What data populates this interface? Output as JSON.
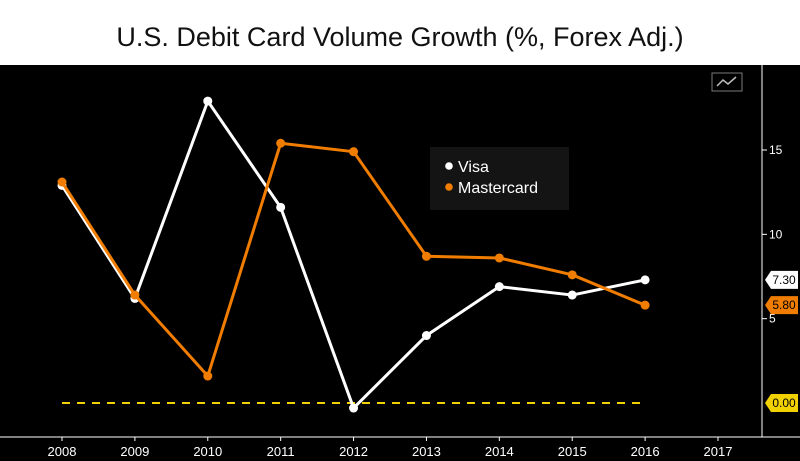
{
  "chart_data": {
    "type": "line",
    "title": "U.S. Debit Card Volume Growth (%, Forex Adj.)",
    "xlabel": "",
    "ylabel": "",
    "x_ticks": [
      "2008",
      "2009",
      "2010",
      "2011",
      "2012",
      "2013",
      "2014",
      "2015",
      "2016",
      "2017"
    ],
    "y_ticks": [
      "5",
      "10",
      "15"
    ],
    "ylim": [
      -2,
      18.5
    ],
    "xlim": [
      2007.6,
      2017.4
    ],
    "y_axis_side": "right",
    "grid": false,
    "legend_position": "top-center",
    "series": [
      {
        "name": "Visa",
        "color": "#ffffff",
        "x": [
          2008,
          2009,
          2010,
          2011,
          2012,
          2013,
          2014,
          2015,
          2016
        ],
        "values": [
          12.9,
          6.2,
          17.9,
          11.6,
          -0.3,
          4.0,
          6.9,
          6.4,
          7.3
        ]
      },
      {
        "name": "Mastercard",
        "color": "#f07d00",
        "x": [
          2008,
          2009,
          2010,
          2011,
          2012,
          2013,
          2014,
          2015,
          2016
        ],
        "values": [
          13.1,
          6.4,
          1.6,
          15.4,
          14.9,
          8.7,
          8.6,
          7.6,
          5.8
        ]
      }
    ],
    "reference_line": {
      "value": 0.0,
      "color": "#f2d100",
      "style": "dashed",
      "x_start": 2008,
      "x_end": 2016
    },
    "last_value_labels": [
      {
        "text": "7.30",
        "value": 7.3,
        "background": "#ffffff",
        "text_color": "#000000"
      },
      {
        "text": "5.80",
        "value": 5.8,
        "background": "#f07d00",
        "text_color": "#000000"
      },
      {
        "text": "0.00",
        "value": 0.0,
        "background": "#f2d100",
        "text_color": "#000000"
      }
    ],
    "colors": {
      "background": "#000000",
      "axis": "#ffffff",
      "tick_text": "#ffffff"
    }
  }
}
